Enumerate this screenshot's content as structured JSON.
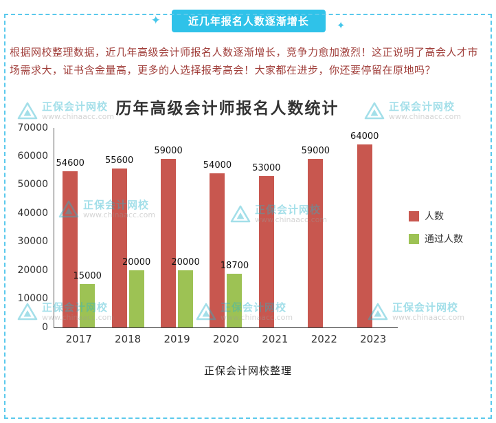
{
  "page": {
    "badge": {
      "text": "近几年报名人数逐渐增长",
      "bg": "#2fc2e9"
    },
    "sparkle": "✦",
    "paragraph": "根据网校整理数据，近几年高级会计师报名人数逐渐增长，竞争力愈加激烈！这正说明了高会人才市场需求大，证书含金量高，更多的人选择报考高会！大家都在进步，你还要停留在原地吗？",
    "footer": "正保会计网校整理",
    "border_color": "#5ac9ec"
  },
  "watermark": {
    "brand": "正保会计网校",
    "url": "www.chinaacc.com",
    "color": "#27b4cb"
  },
  "chart_data": {
    "type": "bar",
    "title": "历年高级会计师报名人数统计",
    "categories": [
      "2017",
      "2018",
      "2019",
      "2020",
      "2021",
      "2022",
      "2023"
    ],
    "series": [
      {
        "name": "人数",
        "color": "#c8574f",
        "values": [
          54600,
          55600,
          59000,
          54000,
          53000,
          59000,
          64000
        ]
      },
      {
        "name": "通过人数",
        "color": "#9dc254",
        "values": [
          15000,
          20000,
          20000,
          18700,
          null,
          null,
          null
        ]
      }
    ],
    "ylim": [
      0,
      70000
    ],
    "yticks": [
      0,
      10000,
      20000,
      30000,
      40000,
      50000,
      60000,
      70000
    ],
    "xlabel": "",
    "ylabel": "",
    "grid": false,
    "legend_position": "right"
  }
}
